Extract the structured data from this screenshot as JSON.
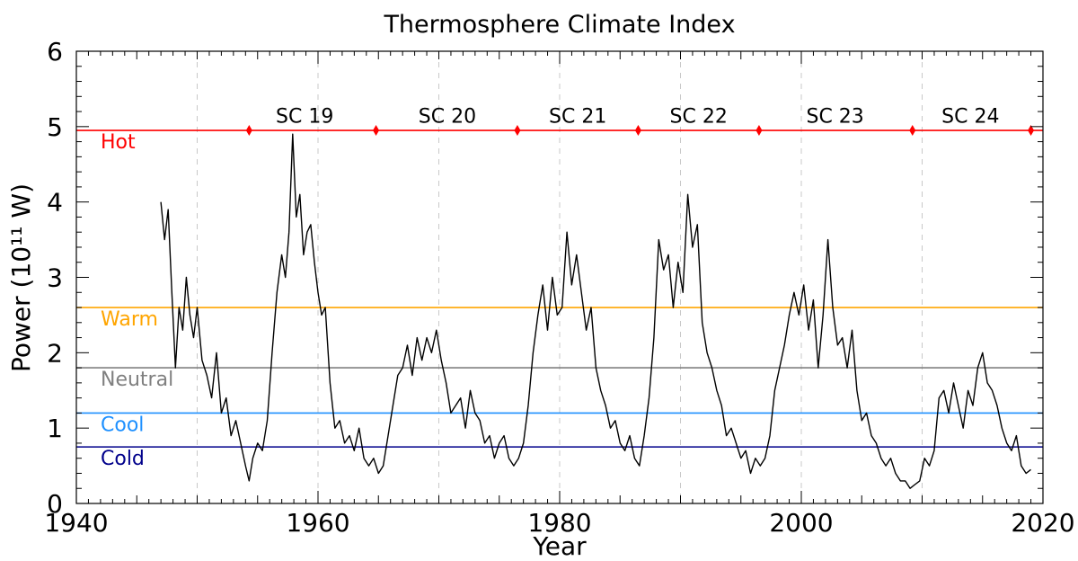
{
  "chart_data": {
    "type": "line",
    "title": "Thermosphere Climate Index",
    "xlabel": "Year",
    "ylabel": "Power (10¹¹ W)",
    "xlim": [
      1940,
      2020
    ],
    "ylim": [
      0,
      6
    ],
    "x_ticks": [
      1940,
      1960,
      1980,
      2000,
      2020
    ],
    "y_ticks": [
      0,
      1,
      2,
      3,
      4,
      5,
      6
    ],
    "vertical_gridlines": [
      1950,
      1960,
      1970,
      1980,
      1990,
      2000,
      2010
    ],
    "grid": "dashed vertical gridlines every 10 years",
    "series": [
      {
        "color": "#000000",
        "x": [
          1947.0,
          1947.3,
          1947.6,
          1947.9,
          1948.2,
          1948.5,
          1948.8,
          1949.1,
          1949.4,
          1949.7,
          1950.0,
          1950.4,
          1950.8,
          1951.2,
          1951.6,
          1952.0,
          1952.4,
          1952.8,
          1953.2,
          1953.6,
          1954.0,
          1954.3,
          1954.6,
          1955.0,
          1955.4,
          1955.8,
          1956.2,
          1956.6,
          1957.0,
          1957.3,
          1957.6,
          1957.9,
          1958.2,
          1958.5,
          1958.8,
          1959.1,
          1959.4,
          1959.7,
          1960.0,
          1960.3,
          1960.6,
          1961.0,
          1961.4,
          1961.8,
          1962.2,
          1962.6,
          1963.0,
          1963.4,
          1963.8,
          1964.2,
          1964.6,
          1965.0,
          1965.4,
          1965.8,
          1966.2,
          1966.6,
          1967.0,
          1967.4,
          1967.8,
          1968.2,
          1968.6,
          1969.0,
          1969.4,
          1969.8,
          1970.2,
          1970.6,
          1971.0,
          1971.4,
          1971.8,
          1972.2,
          1972.6,
          1973.0,
          1973.4,
          1973.8,
          1974.2,
          1974.6,
          1975.0,
          1975.4,
          1975.8,
          1976.2,
          1976.6,
          1977.0,
          1977.4,
          1977.8,
          1978.2,
          1978.6,
          1979.0,
          1979.4,
          1979.8,
          1980.2,
          1980.6,
          1981.0,
          1981.4,
          1981.8,
          1982.2,
          1982.6,
          1983.0,
          1983.4,
          1983.8,
          1984.2,
          1984.6,
          1985.0,
          1985.4,
          1985.8,
          1986.2,
          1986.6,
          1987.0,
          1987.4,
          1987.8,
          1988.2,
          1988.6,
          1989.0,
          1989.4,
          1989.8,
          1990.2,
          1990.6,
          1991.0,
          1991.4,
          1991.8,
          1992.2,
          1992.6,
          1993.0,
          1993.4,
          1993.8,
          1994.2,
          1994.6,
          1995.0,
          1995.4,
          1995.8,
          1996.2,
          1996.6,
          1997.0,
          1997.4,
          1997.8,
          1998.2,
          1998.6,
          1999.0,
          1999.4,
          1999.8,
          2000.2,
          2000.6,
          2001.0,
          2001.4,
          2001.8,
          2002.2,
          2002.6,
          2003.0,
          2003.4,
          2003.8,
          2004.2,
          2004.6,
          2005.0,
          2005.4,
          2005.8,
          2006.2,
          2006.6,
          2007.0,
          2007.4,
          2007.8,
          2008.2,
          2008.6,
          2009.0,
          2009.4,
          2009.8,
          2010.2,
          2010.6,
          2011.0,
          2011.4,
          2011.8,
          2012.2,
          2012.6,
          2013.0,
          2013.4,
          2013.8,
          2014.2,
          2014.6,
          2015.0,
          2015.4,
          2015.8,
          2016.2,
          2016.6,
          2017.0,
          2017.4,
          2017.8,
          2018.2,
          2018.6,
          2019.0
        ],
        "y": [
          4.0,
          3.5,
          3.9,
          2.8,
          1.8,
          2.6,
          2.3,
          3.0,
          2.5,
          2.2,
          2.6,
          1.9,
          1.7,
          1.4,
          2.0,
          1.2,
          1.4,
          0.9,
          1.1,
          0.8,
          0.5,
          0.3,
          0.6,
          0.8,
          0.7,
          1.1,
          2.0,
          2.8,
          3.3,
          3.0,
          3.6,
          4.9,
          3.8,
          4.1,
          3.3,
          3.6,
          3.7,
          3.2,
          2.8,
          2.5,
          2.6,
          1.6,
          1.0,
          1.1,
          0.8,
          0.9,
          0.7,
          1.0,
          0.6,
          0.5,
          0.6,
          0.4,
          0.5,
          0.9,
          1.3,
          1.7,
          1.8,
          2.1,
          1.7,
          2.2,
          1.9,
          2.2,
          2.0,
          2.3,
          1.9,
          1.6,
          1.2,
          1.3,
          1.4,
          1.0,
          1.5,
          1.2,
          1.1,
          0.8,
          0.9,
          0.6,
          0.8,
          0.9,
          0.6,
          0.5,
          0.6,
          0.8,
          1.3,
          2.0,
          2.5,
          2.9,
          2.3,
          3.0,
          2.5,
          2.6,
          3.6,
          2.9,
          3.3,
          2.8,
          2.3,
          2.6,
          1.8,
          1.5,
          1.3,
          1.0,
          1.1,
          0.8,
          0.7,
          0.9,
          0.6,
          0.5,
          0.9,
          1.4,
          2.2,
          3.5,
          3.1,
          3.3,
          2.6,
          3.2,
          2.8,
          4.1,
          3.4,
          3.7,
          2.4,
          2.0,
          1.8,
          1.5,
          1.3,
          0.9,
          1.0,
          0.8,
          0.6,
          0.7,
          0.4,
          0.6,
          0.5,
          0.6,
          0.9,
          1.5,
          1.8,
          2.1,
          2.5,
          2.8,
          2.5,
          2.9,
          2.3,
          2.7,
          1.8,
          2.5,
          3.5,
          2.6,
          2.1,
          2.2,
          1.8,
          2.3,
          1.5,
          1.1,
          1.2,
          0.9,
          0.8,
          0.6,
          0.5,
          0.6,
          0.4,
          0.3,
          0.3,
          0.2,
          0.25,
          0.3,
          0.6,
          0.5,
          0.7,
          1.4,
          1.5,
          1.2,
          1.6,
          1.3,
          1.0,
          1.5,
          1.3,
          1.8,
          2.0,
          1.6,
          1.5,
          1.3,
          1.0,
          0.8,
          0.7,
          0.9,
          0.5,
          0.4,
          0.45
        ]
      }
    ],
    "reference_lines": [
      {
        "label": "Hot",
        "value": 4.95,
        "color": "#ff0000"
      },
      {
        "label": "Warm",
        "value": 2.6,
        "color": "#ffa500"
      },
      {
        "label": "Neutral",
        "value": 1.8,
        "color": "#808080"
      },
      {
        "label": "Cool",
        "value": 1.2,
        "color": "#1e90ff"
      },
      {
        "label": "Cold",
        "value": 0.75,
        "color": "#00008b"
      }
    ],
    "cycle_markers": [
      1954.3,
      1964.8,
      1976.5,
      1986.5,
      1996.5,
      2009.2,
      2019.0
    ],
    "cycle_labels": [
      {
        "label": "SC 19",
        "x": 1958.9
      },
      {
        "label": "SC 20",
        "x": 1970.7
      },
      {
        "label": "SC 21",
        "x": 1981.5
      },
      {
        "label": "SC 22",
        "x": 1991.5
      },
      {
        "label": "SC 23",
        "x": 2002.8
      },
      {
        "label": "SC 24",
        "x": 2014.0
      }
    ],
    "cycle_label_y": 5.15
  }
}
